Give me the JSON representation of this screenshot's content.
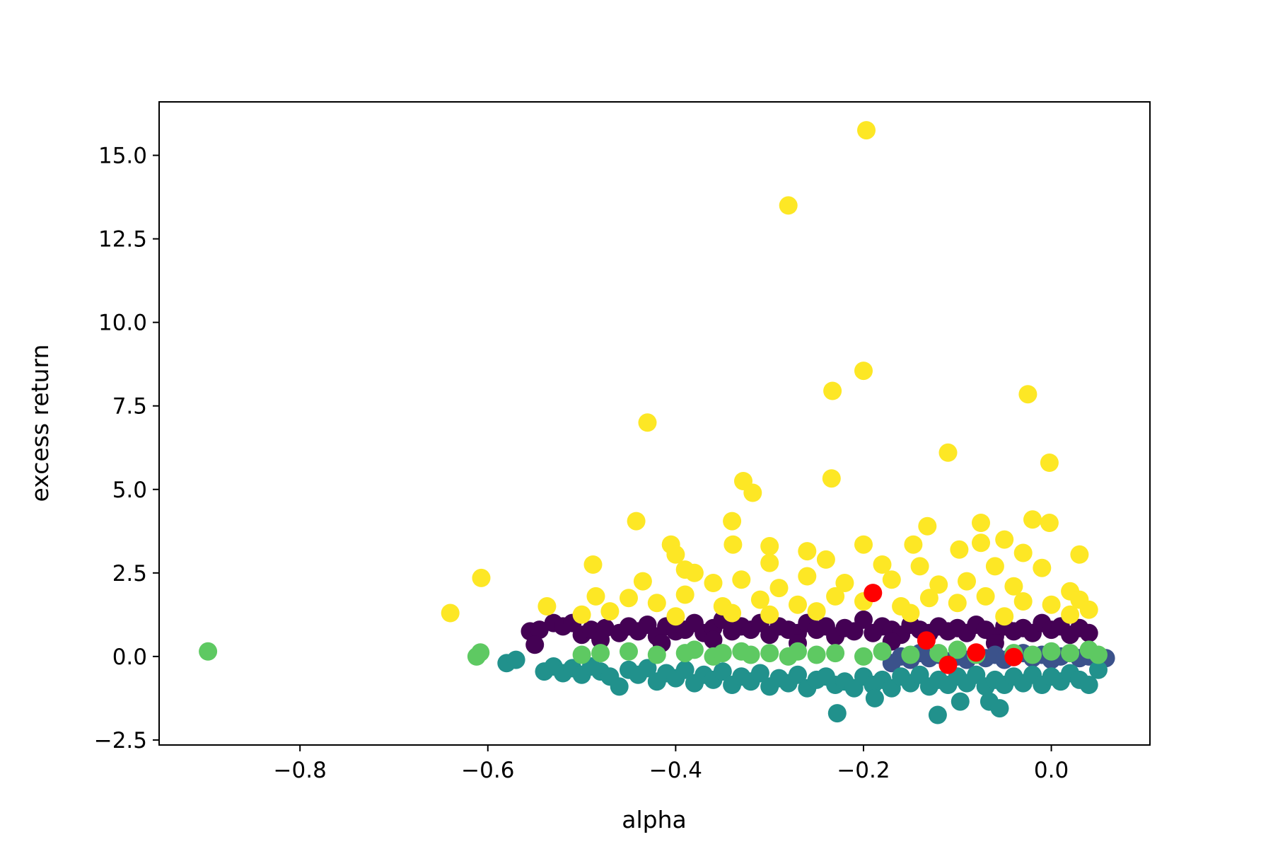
{
  "chart_data": {
    "type": "scatter",
    "title": "",
    "xlabel": "alpha",
    "ylabel": "excess return",
    "xlim": [
      -0.95,
      0.105
    ],
    "ylim": [
      -2.65,
      16.6
    ],
    "xticks": [
      -0.8,
      -0.6,
      -0.4,
      -0.2,
      0.0
    ],
    "xtick_labels": [
      "−0.8",
      "−0.6",
      "−0.4",
      "−0.2",
      "0.0"
    ],
    "yticks": [
      -2.5,
      0.0,
      2.5,
      5.0,
      7.5,
      10.0,
      12.5,
      15.0
    ],
    "ytick_labels": [
      "−2.5",
      "0.0",
      "2.5",
      "5.0",
      "7.5",
      "10.0",
      "12.5",
      "15.0"
    ],
    "grid": false,
    "legend": "none",
    "series": [
      {
        "color": "#440154",
        "points": [
          [
            -0.555,
            0.75
          ],
          [
            -0.545,
            0.8
          ],
          [
            -0.55,
            0.35
          ],
          [
            -0.53,
            1.0
          ],
          [
            -0.52,
            0.9
          ],
          [
            -0.51,
            1.0
          ],
          [
            -0.5,
            0.65
          ],
          [
            -0.49,
            0.8
          ],
          [
            -0.48,
            0.5
          ],
          [
            -0.475,
            0.85
          ],
          [
            -0.46,
            0.7
          ],
          [
            -0.45,
            0.9
          ],
          [
            -0.44,
            0.75
          ],
          [
            -0.43,
            0.95
          ],
          [
            -0.42,
            0.6
          ],
          [
            -0.41,
            0.9
          ],
          [
            -0.4,
            0.75
          ],
          [
            -0.39,
            0.8
          ],
          [
            -0.38,
            1.0
          ],
          [
            -0.37,
            0.7
          ],
          [
            -0.36,
            0.85
          ],
          [
            -0.35,
            1.1
          ],
          [
            -0.34,
            0.75
          ],
          [
            -0.33,
            0.9
          ],
          [
            -0.32,
            0.8
          ],
          [
            -0.31,
            1.0
          ],
          [
            -0.3,
            0.65
          ],
          [
            -0.29,
            0.9
          ],
          [
            -0.28,
            0.8
          ],
          [
            -0.27,
            0.7
          ],
          [
            -0.26,
            1.0
          ],
          [
            -0.25,
            0.8
          ],
          [
            -0.24,
            0.9
          ],
          [
            -0.23,
            0.6
          ],
          [
            -0.22,
            0.85
          ],
          [
            -0.21,
            0.75
          ],
          [
            -0.2,
            1.1
          ],
          [
            -0.19,
            0.7
          ],
          [
            -0.18,
            0.9
          ],
          [
            -0.17,
            0.8
          ],
          [
            -0.16,
            0.65
          ],
          [
            -0.15,
            0.95
          ],
          [
            -0.14,
            0.8
          ],
          [
            -0.13,
            0.7
          ],
          [
            -0.12,
            0.9
          ],
          [
            -0.11,
            0.75
          ],
          [
            -0.1,
            0.85
          ],
          [
            -0.09,
            0.7
          ],
          [
            -0.08,
            0.95
          ],
          [
            -0.07,
            0.8
          ],
          [
            -0.06,
            0.6
          ],
          [
            -0.05,
            0.9
          ],
          [
            -0.04,
            0.75
          ],
          [
            -0.03,
            0.85
          ],
          [
            -0.02,
            0.7
          ],
          [
            -0.01,
            1.0
          ],
          [
            0.0,
            0.8
          ],
          [
            0.01,
            0.9
          ],
          [
            0.02,
            0.65
          ],
          [
            0.03,
            0.85
          ],
          [
            0.04,
            0.7
          ],
          [
            -0.415,
            0.4
          ],
          [
            -0.36,
            0.5
          ],
          [
            -0.27,
            0.4
          ],
          [
            -0.17,
            0.45
          ],
          [
            -0.06,
            0.4
          ]
        ]
      },
      {
        "color": "#3b528b",
        "points": [
          [
            -0.16,
            0.0
          ],
          [
            -0.15,
            -0.1
          ],
          [
            -0.14,
            0.1
          ],
          [
            -0.13,
            -0.05
          ],
          [
            -0.12,
            0.05
          ],
          [
            -0.11,
            -0.15
          ],
          [
            -0.1,
            0.0
          ],
          [
            -0.09,
            -0.1
          ],
          [
            -0.08,
            0.1
          ],
          [
            -0.07,
            -0.05
          ],
          [
            -0.06,
            0.05
          ],
          [
            -0.05,
            -0.1
          ],
          [
            -0.04,
            0.0
          ],
          [
            -0.03,
            0.1
          ],
          [
            -0.02,
            -0.05
          ],
          [
            -0.01,
            0.05
          ],
          [
            0.0,
            -0.1
          ],
          [
            0.01,
            0.0
          ],
          [
            0.02,
            0.1
          ],
          [
            0.03,
            -0.05
          ],
          [
            0.04,
            0.0
          ],
          [
            0.05,
            -0.1
          ],
          [
            0.058,
            -0.05
          ],
          [
            -0.17,
            -0.2
          ]
        ]
      },
      {
        "color": "#21918c",
        "points": [
          [
            -0.58,
            -0.2
          ],
          [
            -0.57,
            -0.1
          ],
          [
            -0.54,
            -0.45
          ],
          [
            -0.53,
            -0.3
          ],
          [
            -0.52,
            -0.5
          ],
          [
            -0.51,
            -0.35
          ],
          [
            -0.5,
            -0.55
          ],
          [
            -0.49,
            -0.3
          ],
          [
            -0.48,
            -0.45
          ],
          [
            -0.47,
            -0.6
          ],
          [
            -0.46,
            -0.9
          ],
          [
            -0.45,
            -0.4
          ],
          [
            -0.44,
            -0.55
          ],
          [
            -0.43,
            -0.35
          ],
          [
            -0.42,
            -0.75
          ],
          [
            -0.41,
            -0.5
          ],
          [
            -0.4,
            -0.65
          ],
          [
            -0.39,
            -0.4
          ],
          [
            -0.38,
            -0.8
          ],
          [
            -0.37,
            -0.55
          ],
          [
            -0.36,
            -0.7
          ],
          [
            -0.35,
            -0.45
          ],
          [
            -0.34,
            -0.85
          ],
          [
            -0.33,
            -0.6
          ],
          [
            -0.32,
            -0.75
          ],
          [
            -0.31,
            -0.5
          ],
          [
            -0.3,
            -0.9
          ],
          [
            -0.29,
            -0.65
          ],
          [
            -0.28,
            -0.8
          ],
          [
            -0.27,
            -0.55
          ],
          [
            -0.26,
            -0.95
          ],
          [
            -0.25,
            -0.7
          ],
          [
            -0.24,
            -0.6
          ],
          [
            -0.23,
            -0.85
          ],
          [
            -0.228,
            -1.7
          ],
          [
            -0.22,
            -0.75
          ],
          [
            -0.21,
            -0.95
          ],
          [
            -0.2,
            -0.6
          ],
          [
            -0.19,
            -0.85
          ],
          [
            -0.188,
            -1.25
          ],
          [
            -0.18,
            -0.7
          ],
          [
            -0.17,
            -0.95
          ],
          [
            -0.16,
            -0.6
          ],
          [
            -0.15,
            -0.8
          ],
          [
            -0.14,
            -0.55
          ],
          [
            -0.13,
            -0.9
          ],
          [
            -0.12,
            -0.7
          ],
          [
            -0.121,
            -1.75
          ],
          [
            -0.11,
            -0.85
          ],
          [
            -0.1,
            -0.6
          ],
          [
            -0.097,
            -1.35
          ],
          [
            -0.09,
            -0.8
          ],
          [
            -0.08,
            -0.55
          ],
          [
            -0.07,
            -0.9
          ],
          [
            -0.066,
            -1.35
          ],
          [
            -0.06,
            -0.7
          ],
          [
            -0.055,
            -1.55
          ],
          [
            -0.05,
            -0.85
          ],
          [
            -0.04,
            -0.6
          ],
          [
            -0.03,
            -0.8
          ],
          [
            -0.02,
            -0.55
          ],
          [
            -0.01,
            -0.85
          ],
          [
            0.0,
            -0.6
          ],
          [
            0.01,
            -0.75
          ],
          [
            0.02,
            -0.5
          ],
          [
            0.03,
            -0.7
          ],
          [
            0.04,
            -0.85
          ],
          [
            0.05,
            -0.4
          ]
        ]
      },
      {
        "color": "#5ec962",
        "points": [
          [
            -0.898,
            0.15
          ],
          [
            -0.612,
            0.0
          ],
          [
            -0.608,
            0.12
          ],
          [
            -0.5,
            0.05
          ],
          [
            -0.48,
            0.1
          ],
          [
            -0.45,
            0.15
          ],
          [
            -0.42,
            0.05
          ],
          [
            -0.39,
            0.1
          ],
          [
            -0.38,
            0.2
          ],
          [
            -0.36,
            0.0
          ],
          [
            -0.35,
            0.1
          ],
          [
            -0.33,
            0.15
          ],
          [
            -0.32,
            0.05
          ],
          [
            -0.3,
            0.1
          ],
          [
            -0.28,
            0.0
          ],
          [
            -0.27,
            0.15
          ],
          [
            -0.25,
            0.05
          ],
          [
            -0.23,
            0.1
          ],
          [
            -0.2,
            0.0
          ],
          [
            -0.18,
            0.15
          ],
          [
            -0.15,
            0.05
          ],
          [
            -0.12,
            0.1
          ],
          [
            -0.1,
            0.2
          ],
          [
            -0.08,
            0.05
          ],
          [
            -0.04,
            0.1
          ],
          [
            -0.02,
            0.05
          ],
          [
            0.0,
            0.15
          ],
          [
            0.02,
            0.1
          ],
          [
            0.04,
            0.2
          ],
          [
            0.05,
            0.05
          ]
        ]
      },
      {
        "color": "#fde725",
        "points": [
          [
            -0.197,
            15.75
          ],
          [
            -0.28,
            13.5
          ],
          [
            -0.2,
            8.55
          ],
          [
            -0.233,
            7.95
          ],
          [
            -0.025,
            7.85
          ],
          [
            -0.43,
            7.0
          ],
          [
            -0.11,
            6.1
          ],
          [
            -0.002,
            5.8
          ],
          [
            -0.234,
            5.33
          ],
          [
            -0.328,
            5.25
          ],
          [
            -0.318,
            4.9
          ],
          [
            -0.442,
            4.05
          ],
          [
            -0.34,
            4.05
          ],
          [
            -0.02,
            4.1
          ],
          [
            -0.002,
            4.0
          ],
          [
            -0.132,
            3.9
          ],
          [
            -0.075,
            4.0
          ],
          [
            -0.405,
            3.35
          ],
          [
            -0.339,
            3.35
          ],
          [
            -0.2,
            3.35
          ],
          [
            -0.147,
            3.35
          ],
          [
            -0.098,
            3.2
          ],
          [
            -0.075,
            3.4
          ],
          [
            -0.05,
            3.5
          ],
          [
            -0.4,
            3.05
          ],
          [
            -0.3,
            3.3
          ],
          [
            -0.26,
            3.15
          ],
          [
            -0.03,
            3.1
          ],
          [
            0.03,
            3.05
          ],
          [
            -0.488,
            2.75
          ],
          [
            -0.39,
            2.6
          ],
          [
            -0.38,
            2.5
          ],
          [
            -0.3,
            2.8
          ],
          [
            -0.24,
            2.9
          ],
          [
            -0.18,
            2.75
          ],
          [
            -0.14,
            2.7
          ],
          [
            -0.06,
            2.7
          ],
          [
            -0.01,
            2.65
          ],
          [
            -0.607,
            2.35
          ],
          [
            -0.435,
            2.25
          ],
          [
            -0.36,
            2.2
          ],
          [
            -0.33,
            2.3
          ],
          [
            -0.29,
            2.05
          ],
          [
            -0.26,
            2.4
          ],
          [
            -0.22,
            2.2
          ],
          [
            -0.17,
            2.3
          ],
          [
            -0.12,
            2.15
          ],
          [
            -0.09,
            2.25
          ],
          [
            -0.04,
            2.1
          ],
          [
            0.02,
            1.95
          ],
          [
            -0.485,
            1.8
          ],
          [
            -0.45,
            1.75
          ],
          [
            -0.42,
            1.6
          ],
          [
            -0.39,
            1.85
          ],
          [
            -0.35,
            1.5
          ],
          [
            -0.31,
            1.7
          ],
          [
            -0.27,
            1.55
          ],
          [
            -0.23,
            1.8
          ],
          [
            -0.2,
            1.65
          ],
          [
            -0.16,
            1.5
          ],
          [
            -0.13,
            1.75
          ],
          [
            -0.1,
            1.6
          ],
          [
            -0.07,
            1.8
          ],
          [
            -0.03,
            1.65
          ],
          [
            0.0,
            1.55
          ],
          [
            0.03,
            1.7
          ],
          [
            -0.64,
            1.3
          ],
          [
            -0.537,
            1.5
          ],
          [
            -0.5,
            1.25
          ],
          [
            -0.47,
            1.35
          ],
          [
            -0.4,
            1.2
          ],
          [
            -0.34,
            1.3
          ],
          [
            -0.3,
            1.25
          ],
          [
            -0.25,
            1.35
          ],
          [
            -0.15,
            1.3
          ],
          [
            -0.05,
            1.2
          ],
          [
            0.02,
            1.25
          ],
          [
            0.04,
            1.4
          ]
        ]
      },
      {
        "color": "#ff0000",
        "points": [
          [
            -0.19,
            1.9
          ],
          [
            -0.133,
            0.48
          ],
          [
            -0.11,
            -0.25
          ],
          [
            -0.08,
            0.12
          ],
          [
            -0.04,
            -0.02
          ]
        ]
      }
    ]
  }
}
